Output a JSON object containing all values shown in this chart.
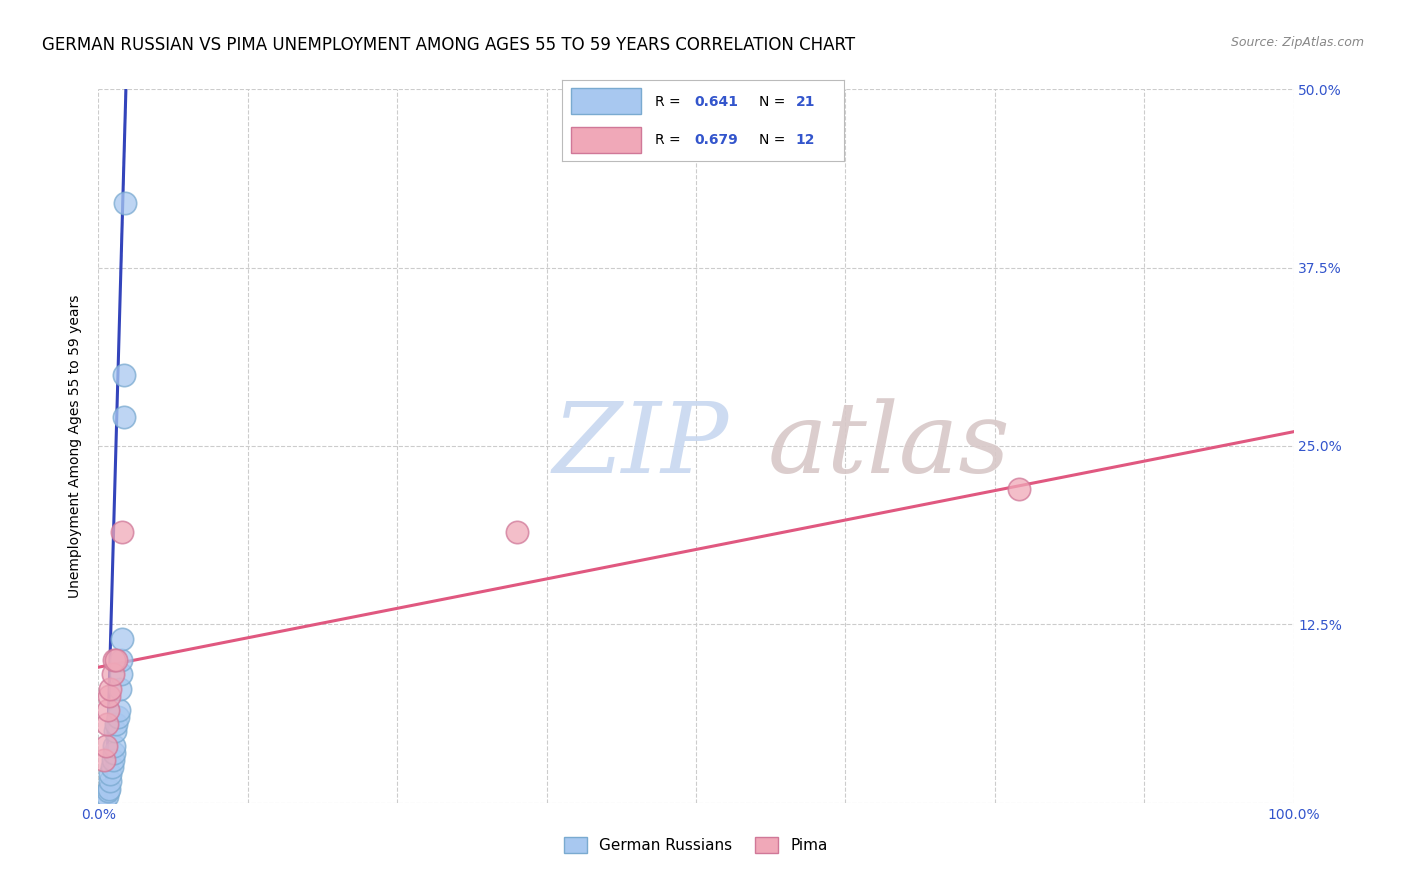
{
  "title": "GERMAN RUSSIAN VS PIMA UNEMPLOYMENT AMONG AGES 55 TO 59 YEARS CORRELATION CHART",
  "source": "Source: ZipAtlas.com",
  "ylabel": "Unemployment Among Ages 55 to 59 years",
  "xlim": [
    0,
    1.0
  ],
  "ylim": [
    0,
    0.5
  ],
  "xticks": [
    0.0,
    0.125,
    0.25,
    0.375,
    0.5,
    0.625,
    0.75,
    0.875,
    1.0
  ],
  "xticklabels": [
    "0.0%",
    "",
    "",
    "",
    "",
    "",
    "",
    "",
    "100.0%"
  ],
  "ytick_positions": [
    0.0,
    0.125,
    0.25,
    0.375,
    0.5
  ],
  "yticklabels_right": [
    "",
    "12.5%",
    "25.0%",
    "37.5%",
    "50.0%"
  ],
  "german_russians_x": [
    0.005,
    0.007,
    0.008,
    0.009,
    0.01,
    0.01,
    0.011,
    0.012,
    0.013,
    0.013,
    0.014,
    0.015,
    0.016,
    0.017,
    0.018,
    0.019,
    0.019,
    0.02,
    0.021,
    0.021,
    0.022
  ],
  "german_russians_y": [
    0.0,
    0.005,
    0.008,
    0.01,
    0.015,
    0.02,
    0.025,
    0.03,
    0.035,
    0.04,
    0.05,
    0.055,
    0.06,
    0.065,
    0.08,
    0.09,
    0.1,
    0.115,
    0.27,
    0.3,
    0.42
  ],
  "pima_x": [
    0.005,
    0.006,
    0.007,
    0.008,
    0.009,
    0.01,
    0.012,
    0.013,
    0.015,
    0.02,
    0.35,
    0.77
  ],
  "pima_y": [
    0.03,
    0.04,
    0.055,
    0.065,
    0.075,
    0.08,
    0.09,
    0.1,
    0.1,
    0.19,
    0.19,
    0.22
  ],
  "gr_color": "#a8c8f0",
  "gr_edge_color": "#7aaad0",
  "pima_color": "#f0a8b8",
  "pima_edge_color": "#d07898",
  "blue_line_color": "#3344bb",
  "pink_line_color": "#e05880",
  "blue_dashed_color": "#99aad0",
  "watermark_zip_color": "#c8d8f0",
  "watermark_atlas_color": "#d8c8c8",
  "grid_color": "#cccccc",
  "title_fontsize": 12,
  "label_fontsize": 10,
  "tick_fontsize": 10,
  "right_tick_color": "#3355cc",
  "blue_reg_slope": 30.0,
  "blue_reg_intercept": -0.19,
  "pink_reg_slope": 0.165,
  "pink_reg_intercept": 0.095
}
